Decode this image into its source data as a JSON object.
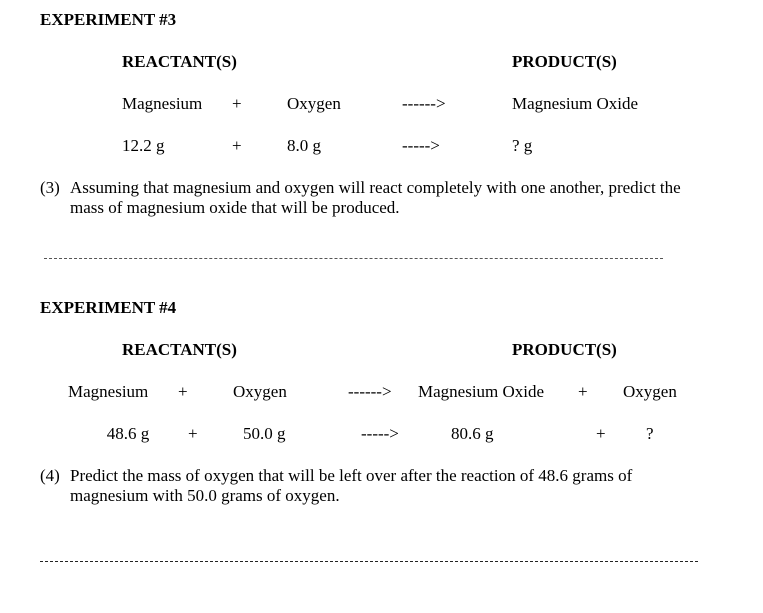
{
  "exp3": {
    "title": "EXPERIMENT #3",
    "header_reactants": "REACTANT(S)",
    "header_products": "PRODUCT(S)",
    "row1": {
      "mag": "Magnesium",
      "plus": "+",
      "oxy": "Oxygen",
      "arrow": "------>",
      "prod": "Magnesium Oxide"
    },
    "row2": {
      "mag": "12.2 g",
      "plus": "+",
      "oxy": "8.0 g",
      "arrow": "----->",
      "prod": "?  g"
    },
    "q_num": "(3)",
    "q_text": "Assuming that magnesium and oxygen will react completely with one another, predict the mass of magnesium oxide that will be produced."
  },
  "exp4": {
    "title": "EXPERIMENT #4",
    "header_reactants": "REACTANT(S)",
    "header_products": "PRODUCT(S)",
    "row1": {
      "mag": "Magnesium",
      "plus": "+",
      "oxy": "Oxygen",
      "arrow": "------>",
      "mgo": "Magnesium Oxide",
      "plus2": "+",
      "oxy2": "Oxygen"
    },
    "row2": {
      "mag": "48.6 g",
      "plus": "+",
      "oxy": "50.0 g",
      "arrow": "----->",
      "mgo": "80.6 g",
      "plus2": "+",
      "oxy2": "?"
    },
    "q_num": "(4)",
    "q_text": "Predict the mass of oxygen that will be left over after the reaction of 48.6 grams of magnesium with 50.0 grams of oxygen."
  }
}
